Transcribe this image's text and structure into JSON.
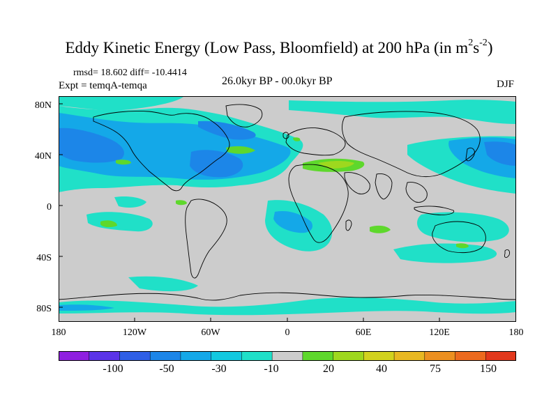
{
  "title": {
    "main": "Eddy Kinetic Energy (Low Pass, Bloomfield) at 200 hPa (in m",
    "sup1": "2",
    "mid": "s",
    "sup2": "-2",
    "end": ")"
  },
  "stats": "rmsd= 18.602 diff= -10.4414",
  "experiment": "Expt = temqA-temqa",
  "period": "26.0kyr BP - 00.0kyr BP",
  "season": "DJF",
  "axes": {
    "y_ticks": [
      "80N",
      "40N",
      "0",
      "40S",
      "80S"
    ],
    "x_ticks": [
      "180",
      "120W",
      "60W",
      "0",
      "60E",
      "120E",
      "180"
    ]
  },
  "colorbar": {
    "labels": [
      "-100",
      "-50",
      "-30",
      "-10",
      "20",
      "40",
      "75",
      "150"
    ],
    "colors": [
      "#8f1fe0",
      "#5b34e8",
      "#2f5fe6",
      "#1c86e8",
      "#14a8e8",
      "#12c8e0",
      "#20e0c8",
      "#cccccc",
      "#5ed82c",
      "#9ed81e",
      "#d2d21e",
      "#e8b822",
      "#ec9020",
      "#ec6a1e",
      "#e2381c"
    ]
  },
  "map_colors": {
    "land_bg": "#cccccc",
    "strong_negative": "#1c86e8",
    "moderate_negative": "#14a8e8",
    "weak_negative": "#20e0c8",
    "positive": "#5ed82c",
    "positive_strong": "#9ed81e"
  }
}
